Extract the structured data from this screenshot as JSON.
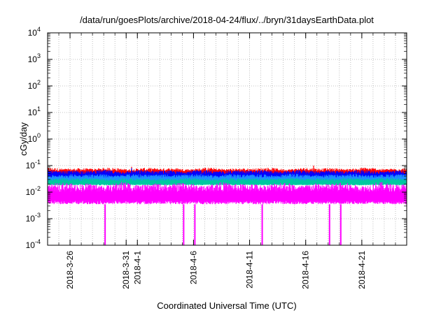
{
  "chart_data": {
    "type": "line",
    "title": "/data/run/goesPlots/archive/2018-04-24/flux/../bryn/31daysEarthData.plot",
    "xlabel": "Coordinated Universal Time (UTC)",
    "ylabel": "cGy/day",
    "yscale": "log",
    "ylim": [
      0.0001,
      10000
    ],
    "xlim": [
      "2018-03-24",
      "2018-04-25"
    ],
    "grid": true,
    "y_tick_labels": [
      {
        "base": "10",
        "exp": "-4"
      },
      {
        "base": "10",
        "exp": "-3"
      },
      {
        "base": "10",
        "exp": "-2"
      },
      {
        "base": "10",
        "exp": "-1"
      },
      {
        "base": "10",
        "exp": "0"
      },
      {
        "base": "10",
        "exp": "1"
      },
      {
        "base": "10",
        "exp": "2"
      },
      {
        "base": "10",
        "exp": "3"
      },
      {
        "base": "10",
        "exp": "4"
      }
    ],
    "x_tick_labels": [
      "2018-3-26",
      "2018-3-31",
      "2018-4-1",
      "2018-4-6",
      "2018-4-11",
      "2018-4-16",
      "2018-4-21"
    ],
    "x_tick_dates": [
      "2018-03-26",
      "2018-03-31",
      "2018-04-01",
      "2018-04-06",
      "2018-04-11",
      "2018-04-16",
      "2018-04-21"
    ],
    "series": [
      {
        "color": "#ff0000",
        "band": [
          0.04,
          0.085
        ],
        "spikes": [
          0.09,
          0.1
        ]
      },
      {
        "color": "#0000ff",
        "band": [
          0.03,
          0.07
        ],
        "spikes": [
          0.08
        ]
      },
      {
        "color": "#1e90ff",
        "band": [
          0.022,
          0.05
        ],
        "spikes": []
      },
      {
        "color": "#00c8a0",
        "band": [
          0.018,
          0.035
        ],
        "spikes": []
      },
      {
        "color": "#ff00ff",
        "band": [
          0.0035,
          0.025
        ],
        "dropouts": [
          "2018-03-29",
          "2018-04-05",
          "2018-04-06",
          "2018-04-12",
          "2018-04-18",
          "2018-04-19"
        ]
      }
    ]
  }
}
